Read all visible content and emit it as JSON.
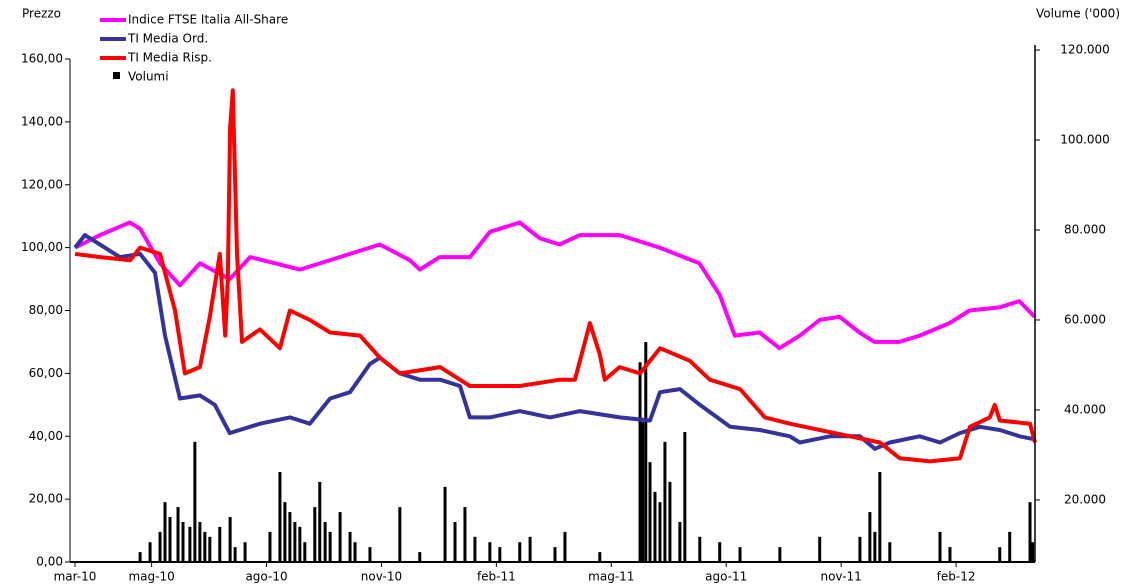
{
  "chart_data": {
    "type": "line",
    "y_label": "Prezzo",
    "y2_label": "Volume ('000)",
    "xlim": [
      -0.13,
      25.06
    ],
    "xticks": [
      {
        "value": 0,
        "label": "mar-10"
      },
      {
        "value": 2,
        "label": "mag-10"
      },
      {
        "value": 5,
        "label": "ago-10"
      },
      {
        "value": 8,
        "label": "nov-10"
      },
      {
        "value": 11,
        "label": "feb-11"
      },
      {
        "value": 14,
        "label": "mag-11"
      },
      {
        "value": 17,
        "label": "ago-11"
      },
      {
        "value": 20,
        "label": "nov-11"
      },
      {
        "value": 23,
        "label": "feb-12"
      }
    ],
    "ylim": [
      0,
      160
    ],
    "yticks": [
      {
        "value": 0,
        "label": "0,00"
      },
      {
        "value": 20,
        "label": "20,00"
      },
      {
        "value": 40,
        "label": "40,00"
      },
      {
        "value": 60,
        "label": "60,00"
      },
      {
        "value": 80,
        "label": "80,00"
      },
      {
        "value": 100,
        "label": "100,00"
      },
      {
        "value": 120,
        "label": "120,00"
      },
      {
        "value": 140,
        "label": "140,00"
      },
      {
        "value": 160,
        "label": "160,00"
      }
    ],
    "y2lim": [
      6200,
      118000
    ],
    "y2ticks": [
      {
        "value": 20000,
        "label": "20.000"
      },
      {
        "value": 40000,
        "label": "40.000"
      },
      {
        "value": 60000,
        "label": "60.000"
      },
      {
        "value": 80000,
        "label": "80.000"
      },
      {
        "value": 100000,
        "label": "100.000"
      },
      {
        "value": 120000,
        "label": "120.000"
      }
    ],
    "series": [
      {
        "name": "Indice FTSE Italia All-Share",
        "color": "#ff00ff",
        "type": "line",
        "x": [
          0,
          0.65,
          1.43,
          1.7,
          2.22,
          2.74,
          3.26,
          4.04,
          4.57,
          5.87,
          6.91,
          7.96,
          8.74,
          9.0,
          9.52,
          10.31,
          10.83,
          11.61,
          12.13,
          12.65,
          13.18,
          14.22,
          15.26,
          16.3,
          16.83,
          17.22,
          17.87,
          18.39,
          18.92,
          19.44,
          19.96,
          20.48,
          20.87,
          21.52,
          22.05,
          22.83,
          23.35,
          24.13,
          24.65,
          25.05
        ],
        "values": [
          100,
          104,
          108,
          106,
          95,
          88,
          95,
          90,
          97,
          93,
          97,
          101,
          96,
          93,
          97,
          97,
          105,
          108,
          103,
          101,
          104,
          104,
          100,
          95,
          85,
          72,
          73,
          68,
          72,
          77,
          78,
          73,
          70,
          70,
          72,
          76,
          80,
          81,
          83,
          78
        ]
      },
      {
        "name": "TI Media Ord.",
        "color": "#333399",
        "type": "line",
        "x": [
          0,
          0.26,
          0.65,
          1.17,
          1.7,
          2.09,
          2.35,
          2.74,
          3.26,
          3.65,
          4.04,
          4.83,
          5.61,
          6.13,
          6.66,
          7.18,
          7.7,
          7.96,
          8.48,
          9.0,
          9.53,
          10.05,
          10.31,
          10.83,
          11.61,
          12.4,
          13.18,
          14.22,
          15.01,
          15.27,
          15.79,
          16.31,
          17.1,
          17.88,
          18.66,
          18.92,
          19.71,
          20.49,
          20.88,
          21.27,
          22.05,
          22.58,
          23.1,
          23.62,
          24.14,
          24.66,
          25.06
        ],
        "values": [
          100,
          104,
          101,
          97,
          98,
          92,
          72,
          52,
          53,
          50,
          41,
          44,
          46,
          44,
          52,
          54,
          63,
          65,
          60,
          58,
          58,
          56,
          46,
          46,
          48,
          46,
          48,
          46,
          45,
          54,
          55,
          50,
          43,
          42,
          40,
          38,
          40,
          40,
          36,
          38,
          40,
          38,
          41,
          43,
          42,
          40,
          39
        ]
      },
      {
        "name": "TI Media Risp.",
        "color": "#ff0000",
        "type": "line",
        "x": [
          0,
          0.65,
          1.44,
          1.7,
          2.22,
          2.61,
          2.87,
          3.26,
          3.52,
          3.78,
          3.92,
          3.99,
          4.05,
          4.12,
          4.23,
          4.36,
          4.83,
          5.35,
          5.61,
          6.13,
          6.66,
          7.44,
          7.96,
          8.48,
          9.53,
          10.31,
          11.61,
          12.66,
          13.05,
          13.44,
          13.7,
          13.83,
          14.22,
          14.75,
          15.27,
          16.05,
          16.57,
          17.36,
          18.01,
          18.66,
          19.44,
          20.23,
          21.01,
          21.53,
          22.32,
          23.1,
          23.36,
          23.88,
          24.01,
          24.14,
          24.93,
          25.06
        ],
        "values": [
          98,
          97,
          96,
          100,
          98,
          80,
          60,
          62,
          78,
          98,
          72,
          90,
          138,
          150,
          98,
          70,
          74,
          68,
          80,
          77,
          73,
          72,
          65,
          60,
          62,
          56,
          56,
          58,
          58,
          76,
          66,
          58,
          62,
          60,
          68,
          64,
          58,
          55,
          46,
          44,
          42,
          40,
          38,
          33,
          32,
          33,
          43,
          46,
          50,
          45,
          44,
          38
        ]
      },
      {
        "name": "Volumi",
        "color": "#000000",
        "type": "bar",
        "axis": "y2",
        "x": [
          1.7,
          1.96,
          2.22,
          2.35,
          2.48,
          2.69,
          2.82,
          3.0,
          3.13,
          3.26,
          3.39,
          3.52,
          3.78,
          4.05,
          4.18,
          4.44,
          5.09,
          5.35,
          5.48,
          5.61,
          5.74,
          5.87,
          6.0,
          6.26,
          6.39,
          6.53,
          6.66,
          6.92,
          7.18,
          7.31,
          7.7,
          8.48,
          9.0,
          9.66,
          9.92,
          10.18,
          10.44,
          10.83,
          11.09,
          11.61,
          11.88,
          12.53,
          12.79,
          13.7,
          14.75,
          14.82,
          14.9,
          15.01,
          15.14,
          15.27,
          15.4,
          15.53,
          15.79,
          15.92,
          16.31,
          16.83,
          17.36,
          18.4,
          19.44,
          20.49,
          20.75,
          20.88,
          21.01,
          21.27,
          22.58,
          22.84,
          24.14,
          24.4,
          24.93,
          25.0
        ],
        "values": [
          8400,
          10600,
          12900,
          19500,
          16200,
          18400,
          15100,
          14000,
          32900,
          15100,
          12900,
          11800,
          14000,
          16200,
          9500,
          10600,
          12900,
          26200,
          19500,
          17300,
          15100,
          14000,
          10600,
          18400,
          24000,
          15100,
          12900,
          17300,
          12900,
          10600,
          9500,
          18400,
          8400,
          22900,
          15100,
          18400,
          11800,
          10600,
          9500,
          10600,
          11800,
          9500,
          12900,
          8400,
          50600,
          37300,
          55100,
          28400,
          21800,
          19500,
          32900,
          24000,
          15100,
          35100,
          11800,
          10600,
          9500,
          9500,
          11800,
          11800,
          17300,
          12900,
          26200,
          10600,
          12900,
          9500,
          9500,
          12900,
          19500,
          10600
        ]
      }
    ]
  }
}
